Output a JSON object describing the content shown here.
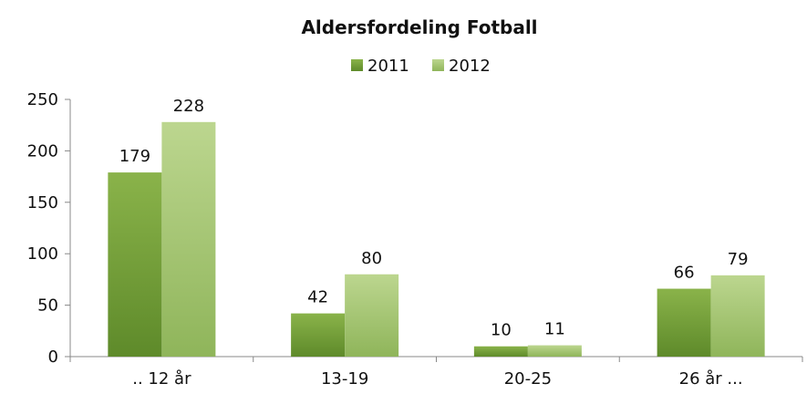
{
  "chart_data": {
    "type": "bar",
    "title": "Aldersfordeling Fotball",
    "xlabel": "",
    "ylabel": "",
    "categories": [
      ".. 12 år",
      "13-19",
      "20-25",
      "26 år ..."
    ],
    "series": [
      {
        "name": "2011",
        "values": [
          179,
          42,
          10,
          66
        ],
        "color_top": "#8ab34a",
        "color_bottom": "#5e8a2a"
      },
      {
        "name": "2012",
        "values": [
          228,
          80,
          11,
          79
        ],
        "color_top": "#bcd68f",
        "color_bottom": "#8fb55a"
      }
    ],
    "ylim": [
      0,
      250
    ],
    "yticks": [
      0,
      50,
      100,
      150,
      200,
      250
    ],
    "legend": "top-center",
    "grid": false,
    "data_labels": true
  }
}
